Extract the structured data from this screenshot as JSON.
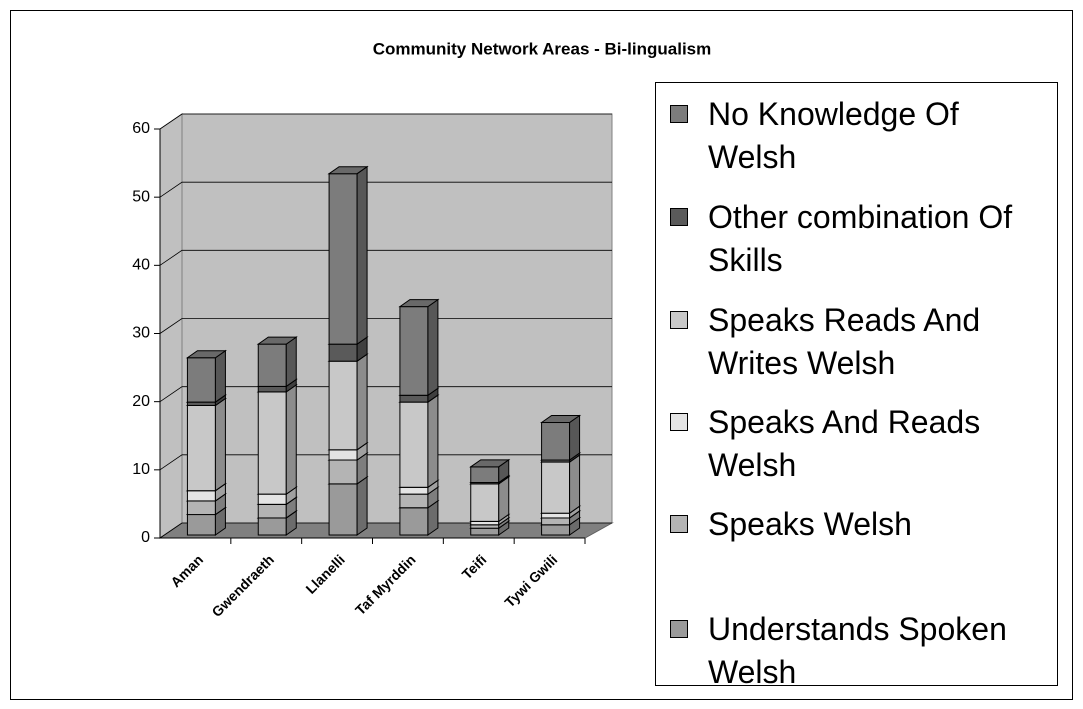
{
  "chart_data": {
    "type": "bar3d_stacked",
    "title": "Community Network Areas - Bi-lingualism",
    "categories": [
      "Aman",
      "Gwendraeth",
      "Llanelli",
      "Taf Myrddin",
      "Teifi",
      "Tywi Gwili"
    ],
    "series": [
      {
        "name": "Understands Spoken Welsh",
        "color": "#9a9a9a",
        "values": [
          3,
          2.5,
          7.5,
          4,
          1,
          1.5
        ]
      },
      {
        "name": "Speaks Welsh",
        "color": "#b4b4b4",
        "values": [
          2,
          2,
          3.5,
          2,
          0.5,
          1
        ]
      },
      {
        "name": "Speaks And Reads Welsh",
        "color": "#e4e4e4",
        "values": [
          1.5,
          1.5,
          1.5,
          1,
          0.5,
          0.7
        ]
      },
      {
        "name": "Speaks Reads And Writes Welsh",
        "color": "#c8c8c8",
        "values": [
          12.5,
          15,
          13,
          12.5,
          5.5,
          7.5
        ]
      },
      {
        "name": "Other combination Of Skills",
        "color": "#5a5a5a",
        "values": [
          0.5,
          0.8,
          2.5,
          1,
          0.2,
          0.3
        ]
      },
      {
        "name": "No Knowledge Of Welsh",
        "color": "#7c7c7c",
        "values": [
          6.5,
          6.2,
          25,
          13,
          2.3,
          5.5
        ]
      }
    ],
    "ylim": [
      0,
      60
    ],
    "yticks": [
      0,
      10,
      20,
      30,
      40,
      50,
      60
    ],
    "grid": true,
    "legend": "right"
  }
}
